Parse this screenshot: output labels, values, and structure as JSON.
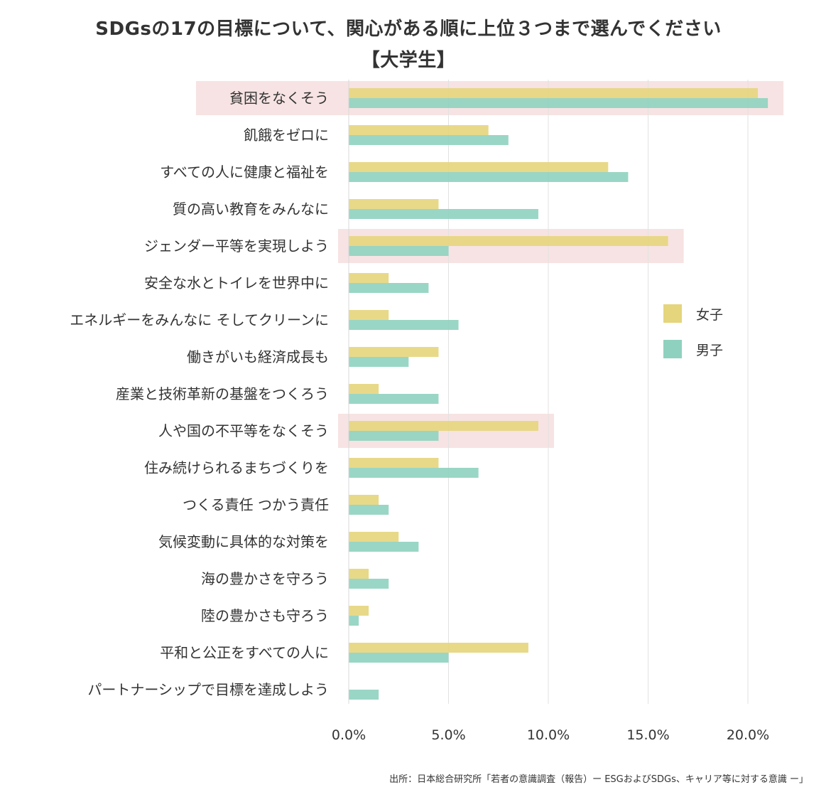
{
  "chart_data": {
    "type": "bar",
    "orientation": "horizontal",
    "title": "SDGsの17の目標について、関心がある順に上位３つまで選んでください",
    "subtitle": "【大学生】",
    "categories": [
      "貧困をなくそう",
      "飢餓をゼロに",
      "すべての人に健康と福祉を",
      "質の高い教育をみんなに",
      "ジェンダー平等を実現しよう",
      "安全な水とトイレを世界中に",
      "エネルギーをみんなに そしてクリーンに",
      "働きがいも経済成長も",
      "産業と技術革新の基盤をつくろう",
      "人や国の不平等をなくそう",
      "住み続けられるまちづくりを",
      "つくる責任 つかう責任",
      "気候変動に具体的な対策を",
      "海の豊かさを守ろう",
      "陸の豊かさも守ろう",
      "平和と公正をすべての人に",
      "パートナーシップで目標を達成しよう"
    ],
    "series": [
      {
        "name": "女子",
        "color": "#e5d57c",
        "values": [
          20.5,
          7.0,
          13.0,
          4.5,
          16.0,
          2.0,
          2.0,
          4.5,
          1.5,
          9.5,
          4.5,
          1.5,
          2.5,
          1.0,
          1.0,
          9.0,
          0.0
        ]
      },
      {
        "name": "男子",
        "color": "#8fd1bf",
        "values": [
          21.0,
          8.0,
          14.0,
          9.5,
          5.0,
          4.0,
          5.5,
          3.0,
          4.5,
          4.5,
          6.5,
          2.0,
          3.5,
          2.0,
          0.5,
          5.0,
          1.5
        ]
      }
    ],
    "highlighted_categories": [
      "貧困をなくそう",
      "ジェンダー平等を実現しよう",
      "人や国の不平等をなくそう"
    ],
    "highlight_color": "#f7e3e3",
    "x_ticks": [
      "0.0%",
      "5.0%",
      "10.0%",
      "15.0%",
      "20.0%"
    ],
    "xlim": [
      0,
      20
    ],
    "grid": true,
    "legend_position": "right"
  },
  "source": "出所：日本総合研究所「若者の意識調査（報告）ー ESGおよびSDGs、キャリア等に対する意識 ー」"
}
